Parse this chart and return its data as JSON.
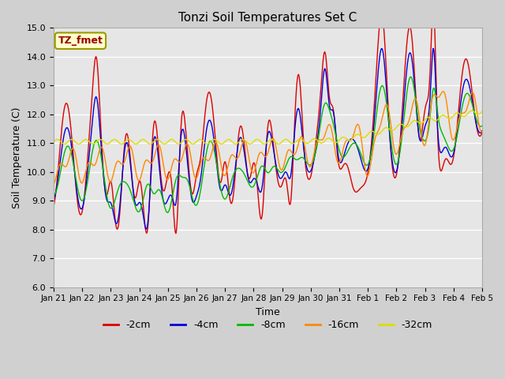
{
  "title": "Tonzi Soil Temperatures Set C",
  "xlabel": "Time",
  "ylabel": "Soil Temperature (C)",
  "ylim": [
    6.0,
    15.0
  ],
  "yticks": [
    6.0,
    7.0,
    8.0,
    9.0,
    10.0,
    11.0,
    12.0,
    13.0,
    14.0,
    15.0
  ],
  "legend_label": "TZ_fmet",
  "series_labels": [
    "-2cm",
    "-4cm",
    "-8cm",
    "-16cm",
    "-32cm"
  ],
  "series_colors": [
    "#dd0000",
    "#0000dd",
    "#00bb00",
    "#ff8800",
    "#dddd00"
  ],
  "x_tick_labels": [
    "Jan 21",
    "Jan 22",
    "Jan 23",
    "Jan 24",
    "Jan 25",
    "Jan 26",
    "Jan 27",
    "Jan 28",
    "Jan 29",
    "Jan 30",
    "Jan 31",
    "Feb 1",
    "Feb 2",
    "Feb 3",
    "Feb 4",
    "Feb 5"
  ],
  "figsize": [
    6.4,
    4.8
  ],
  "dpi": 100
}
